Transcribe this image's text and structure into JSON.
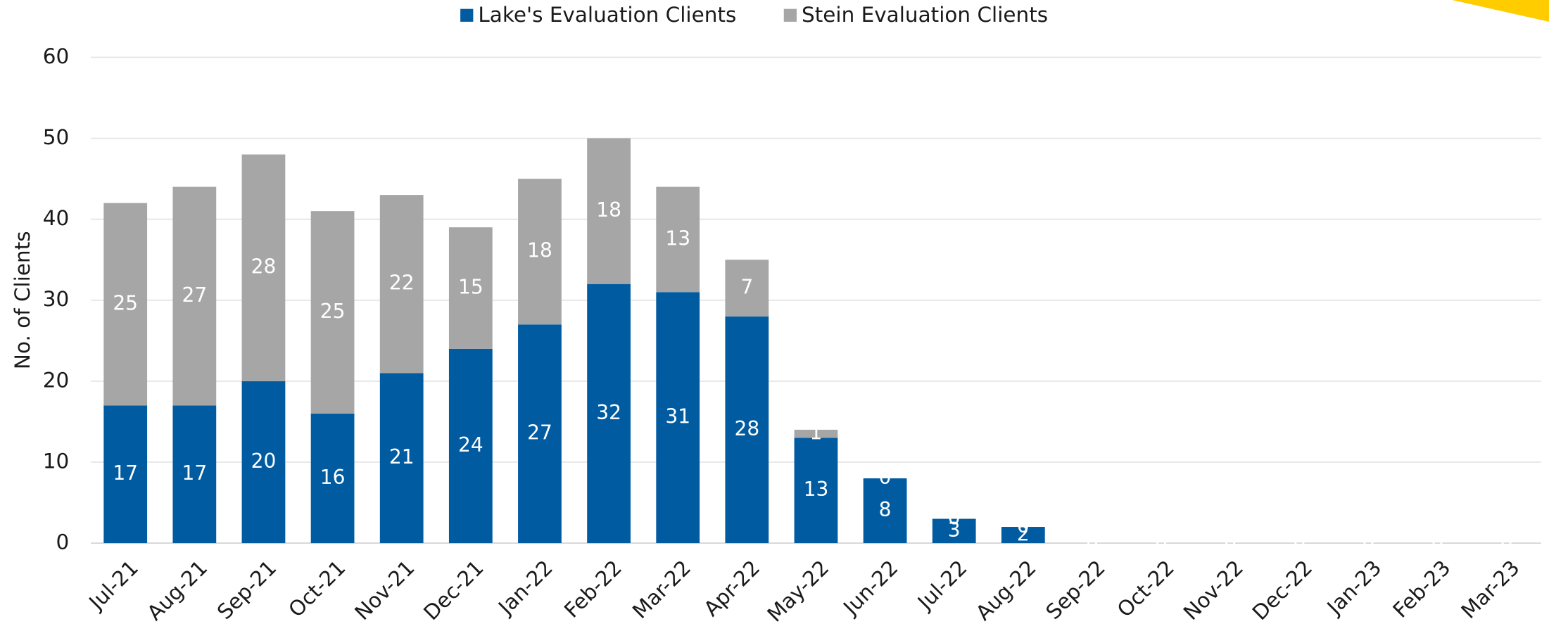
{
  "chart_data": {
    "type": "stacked_bar",
    "categories": [
      "Jul-21",
      "Aug-21",
      "Sep-21",
      "Oct-21",
      "Nov-21",
      "Dec-21",
      "Jan-22",
      "Feb-22",
      "Mar-22",
      "Apr-22",
      "May-22",
      "Jun-22",
      "Jul-22",
      "Aug-22",
      "Sep-22",
      "Oct-22",
      "Nov-22",
      "Dec-22",
      "Jan-23",
      "Feb-23",
      "Mar-23"
    ],
    "series": [
      {
        "name": "Lake's Evaluation Clients",
        "color": "#005ba1",
        "values": [
          17,
          17,
          20,
          16,
          21,
          24,
          27,
          32,
          31,
          28,
          13,
          8,
          3,
          2,
          0,
          0,
          0,
          0,
          0,
          0,
          0
        ]
      },
      {
        "name": "Stein Evaluation Clients",
        "color": "#a6a6a6",
        "values": [
          25,
          27,
          28,
          25,
          22,
          15,
          18,
          18,
          13,
          7,
          1,
          0,
          0,
          0,
          0,
          0,
          0,
          0,
          0,
          0,
          0
        ]
      }
    ],
    "y_label": "No. of Clients",
    "ylim": [
      0,
      60
    ],
    "yticks": [
      0,
      10,
      20,
      30,
      40,
      50,
      60
    ],
    "grid": true,
    "legend": "top"
  }
}
